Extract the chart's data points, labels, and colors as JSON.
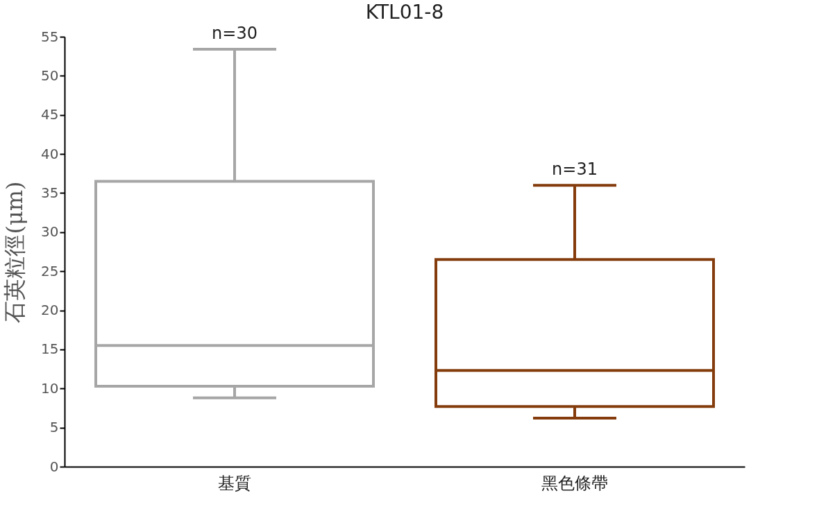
{
  "chart_data": {
    "type": "box",
    "title": "KTL01-8",
    "ylabel": "石英粒徑(μm)",
    "categories": [
      "基質",
      "黑色條帶"
    ],
    "boxes": [
      {
        "low": 8.8,
        "q1": 10.3,
        "median": 15.5,
        "q3": 36.5,
        "high": 53.4
      },
      {
        "low": 6.2,
        "q1": 7.7,
        "median": 12.3,
        "q3": 26.5,
        "high": 36.0
      }
    ],
    "colors": [
      "#a6a6a6",
      "#843c0c"
    ],
    "ylim": [
      0,
      55
    ],
    "yticks": [
      0,
      5,
      10,
      15,
      20,
      25,
      30,
      35,
      40,
      45,
      50,
      55
    ],
    "grid": false,
    "annotations": [
      {
        "text": "n=30",
        "x": "基質",
        "y": 53.4
      },
      {
        "text": "n=31",
        "x": "黑色條帶",
        "y": 36.0
      }
    ]
  }
}
